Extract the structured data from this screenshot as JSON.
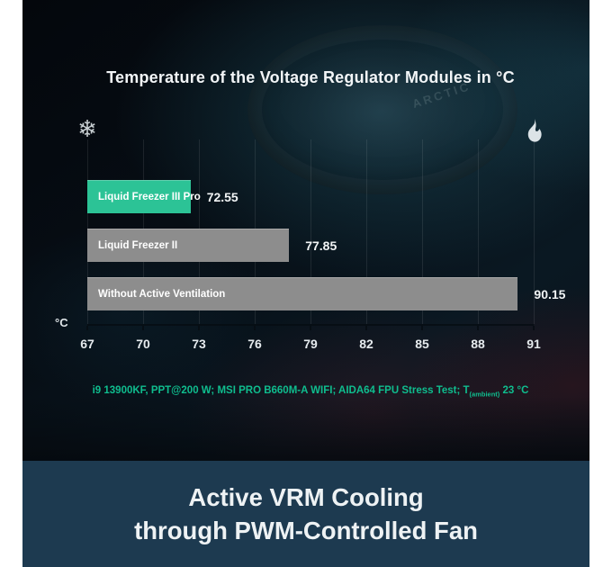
{
  "header": {
    "title": "Temperature of the Voltage Regulator Modules in °C"
  },
  "icons": {
    "cold_glyph": "❄",
    "cold_name": "snowflake-icon",
    "hot_name": "flame-icon"
  },
  "background": {
    "watermark": "ARCTIC"
  },
  "chart_data": {
    "type": "bar",
    "orientation": "horizontal",
    "title": "Temperature of the Voltage Regulator Modules in °C",
    "categories": [
      "Liquid Freezer III Pro",
      "Liquid Freezer II",
      "Without Active Ventilation"
    ],
    "values": [
      72.55,
      77.85,
      90.15
    ],
    "value_labels": [
      "72.55",
      "77.85",
      "90.15"
    ],
    "bar_colors": [
      "#2cc396",
      "#8d8d8d",
      "#8d8d8d"
    ],
    "xlim": [
      67,
      91
    ],
    "x_ticks": [
      67,
      70,
      73,
      76,
      79,
      82,
      85,
      88,
      91
    ],
    "axis_unit": "°C",
    "grid": true,
    "legend": "none",
    "accent_color": "#2cc396",
    "neutral_color": "#8d8d8d"
  },
  "footnote": {
    "prefix": "i9 13900KF, PPT@200 W; MSI PRO B660M-A WIFI; AIDA64 FPU Stress Test; T",
    "subscript": "(ambient)",
    "suffix": " 23 °C",
    "color": "#0fbd8e"
  },
  "banner": {
    "line1": "Active VRM Cooling",
    "line2": "through PWM-Controlled Fan",
    "background": "#1d3a50"
  }
}
